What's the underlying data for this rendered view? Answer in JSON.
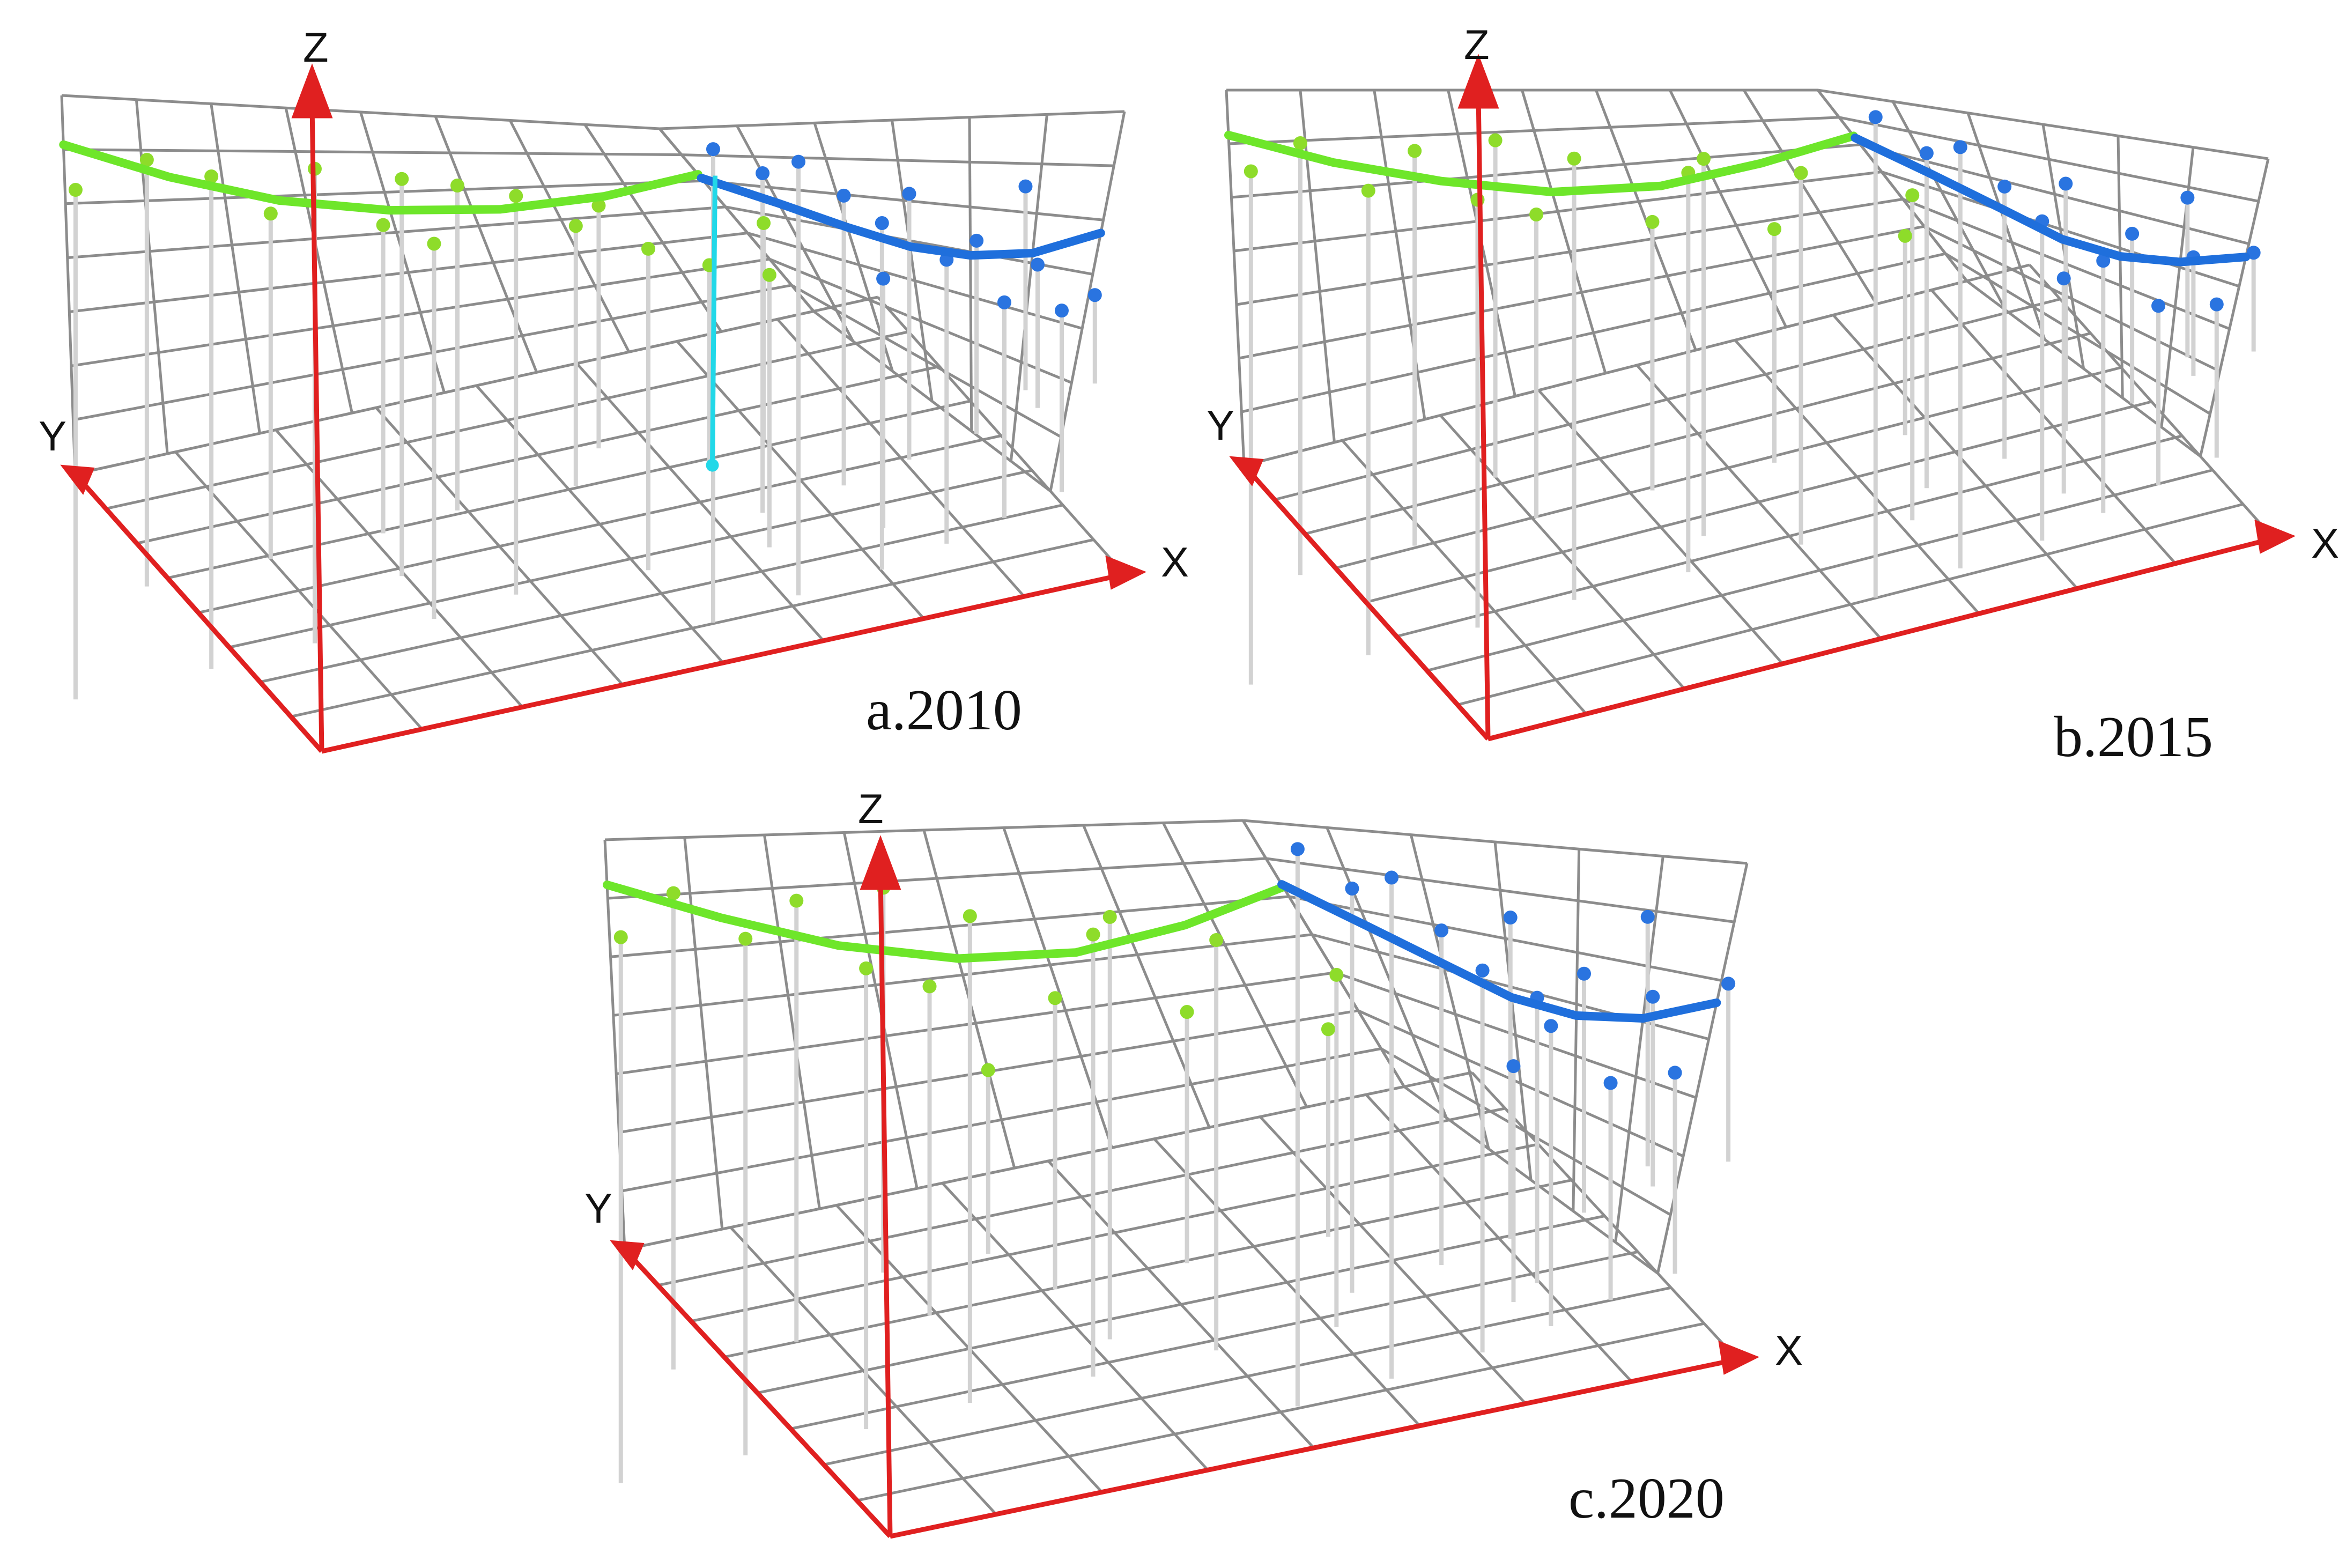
{
  "colors": {
    "grid": "#8c8c8c",
    "axis": "#e02020",
    "west_trend": "#6ee62a",
    "east_trend": "#1f6fdc",
    "west_points": "#8edc2a",
    "east_points": "#2a74e0",
    "highlight_stem": "#22d8e8",
    "stems": "#d2d2d2"
  },
  "chart_data": [
    {
      "type": "scatter",
      "caption": "a.2010",
      "axis_labels": {
        "x": "X",
        "y": "Y",
        "z": "Z"
      },
      "grid": true,
      "west_trend": [
        [
          0,
          8.7
        ],
        [
          1,
          7.8
        ],
        [
          2,
          7.0
        ],
        [
          3,
          6.5
        ],
        [
          4,
          6.3
        ],
        [
          5,
          6.6
        ],
        [
          6,
          7.5
        ]
      ],
      "east_trend": [
        [
          0,
          7.3
        ],
        [
          1,
          6.4
        ],
        [
          2,
          5.8
        ],
        [
          3,
          5.5
        ],
        [
          4,
          5.6
        ],
        [
          5,
          6.0
        ],
        [
          6,
          6.8
        ]
      ],
      "west_points": [
        [
          0.1,
          7.5
        ],
        [
          0.8,
          8.3
        ],
        [
          1.4,
          7.8
        ],
        [
          1.9,
          6.6
        ],
        [
          2.4,
          8.0
        ],
        [
          2.9,
          6.0
        ],
        [
          3.3,
          5.2
        ],
        [
          3.7,
          7.3
        ],
        [
          4.2,
          6.8
        ],
        [
          4.6,
          5.4
        ],
        [
          5.1,
          4.1
        ],
        [
          5.5,
          3.0
        ],
        [
          5.9,
          2.1
        ],
        [
          6.2,
          4.7
        ],
        [
          3.2,
          7.6
        ],
        [
          4.9,
          6.2
        ]
      ],
      "east_points": [
        [
          0.5,
          8.9
        ],
        [
          1.0,
          7.8
        ],
        [
          1.6,
          8.4
        ],
        [
          2.1,
          7.1
        ],
        [
          2.6,
          6.2
        ],
        [
          3.1,
          7.4
        ],
        [
          3.6,
          5.3
        ],
        [
          4.1,
          6.1
        ],
        [
          4.6,
          4.4
        ],
        [
          5.1,
          5.7
        ],
        [
          5.6,
          4.6
        ],
        [
          6.1,
          5.2
        ],
        [
          2.4,
          4.0
        ],
        [
          4.8,
          7.9
        ]
      ],
      "highlight": [
        0.25,
        7.5
      ]
    },
    {
      "type": "scatter",
      "caption": "b.2015",
      "axis_labels": {
        "x": "X",
        "y": "Y",
        "z": "Z"
      },
      "grid": true,
      "west_trend": [
        [
          0,
          8.8
        ],
        [
          1,
          7.9
        ],
        [
          2,
          7.1
        ],
        [
          3,
          6.4
        ],
        [
          4,
          6.2
        ],
        [
          5,
          6.7
        ],
        [
          6,
          7.6
        ]
      ],
      "east_trend": [
        [
          0,
          7.5
        ],
        [
          1,
          6.5
        ],
        [
          2,
          5.8
        ],
        [
          3,
          5.3
        ],
        [
          4,
          5.4
        ],
        [
          5,
          5.9
        ],
        [
          6,
          6.7
        ]
      ],
      "west_points": [
        [
          0.2,
          7.8
        ],
        [
          0.7,
          8.5
        ],
        [
          1.3,
          7.0
        ],
        [
          1.8,
          8.1
        ],
        [
          2.3,
          6.4
        ],
        [
          2.8,
          5.7
        ],
        [
          3.3,
          7.5
        ],
        [
          3.8,
          4.9
        ],
        [
          4.3,
          6.6
        ],
        [
          4.8,
          3.9
        ],
        [
          5.3,
          6.1
        ],
        [
          5.8,
          2.6
        ],
        [
          6.1,
          4.4
        ],
        [
          2.6,
          8.3
        ],
        [
          4.5,
          7.1
        ]
      ],
      "east_points": [
        [
          0.6,
          9.0
        ],
        [
          1.1,
          7.6
        ],
        [
          1.7,
          8.3
        ],
        [
          2.2,
          6.9
        ],
        [
          2.7,
          5.8
        ],
        [
          3.2,
          7.7
        ],
        [
          3.7,
          5.0
        ],
        [
          4.2,
          6.4
        ],
        [
          4.7,
          4.1
        ],
        [
          5.2,
          6.2
        ],
        [
          5.7,
          4.9
        ],
        [
          6.1,
          6.9
        ],
        [
          2.9,
          3.6
        ],
        [
          5.0,
          8.2
        ]
      ]
    },
    {
      "type": "scatter",
      "caption": "c.2020",
      "axis_labels": {
        "x": "X",
        "y": "Y",
        "z": "Z"
      },
      "grid": true,
      "west_trend": [
        [
          0,
          8.9
        ],
        [
          1,
          7.9
        ],
        [
          2,
          6.9
        ],
        [
          3,
          6.2
        ],
        [
          4,
          6.0
        ],
        [
          5,
          6.5
        ],
        [
          6,
          7.5
        ]
      ],
      "east_trend": [
        [
          0,
          7.6
        ],
        [
          1,
          6.6
        ],
        [
          2,
          5.9
        ],
        [
          3,
          5.4
        ],
        [
          4,
          5.4
        ],
        [
          5,
          5.8
        ],
        [
          6,
          6.6
        ]
      ],
      "west_points": [
        [
          0.1,
          7.6
        ],
        [
          0.6,
          8.6
        ],
        [
          1.2,
          7.3
        ],
        [
          1.7,
          8.2
        ],
        [
          2.2,
          6.2
        ],
        [
          2.7,
          5.5
        ],
        [
          3.2,
          7.4
        ],
        [
          3.7,
          4.7
        ],
        [
          4.2,
          6.5
        ],
        [
          4.7,
          3.7
        ],
        [
          5.2,
          5.9
        ],
        [
          5.7,
          2.4
        ],
        [
          6.0,
          4.2
        ],
        [
          2.5,
          8.4
        ],
        [
          4.4,
          7.0
        ],
        [
          3.0,
          2.9
        ]
      ],
      "east_points": [
        [
          0.5,
          9.1
        ],
        [
          1.0,
          7.9
        ],
        [
          1.6,
          8.5
        ],
        [
          2.1,
          7.0
        ],
        [
          2.6,
          6.0
        ],
        [
          3.1,
          7.8
        ],
        [
          3.6,
          4.9
        ],
        [
          4.1,
          6.6
        ],
        [
          4.6,
          3.9
        ],
        [
          5.1,
          6.4
        ],
        [
          5.6,
          4.7
        ],
        [
          6.1,
          7.1
        ],
        [
          2.9,
          3.3
        ],
        [
          4.9,
          8.4
        ],
        [
          3.4,
          5.6
        ]
      ]
    }
  ]
}
